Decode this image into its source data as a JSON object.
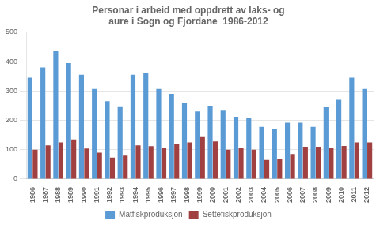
{
  "chart_data": {
    "type": "bar",
    "title": "Personar i arbeid med oppdrett av laks- og\naure i Sogn og Fjordane  1986-2012",
    "categories": [
      "1986",
      "1987",
      "1988",
      "1989",
      "1990",
      "1991",
      "1992",
      "1993",
      "1994",
      "1995",
      "1996",
      "1997",
      "1998",
      "1999",
      "2000",
      "2001",
      "2002",
      "2003",
      "2004",
      "2005",
      "2006",
      "2007",
      "2008",
      "2009",
      "2010",
      "2011",
      "2012"
    ],
    "series": [
      {
        "name": "Matfiskproduksjon",
        "color": "#5B9BD5",
        "values": [
          345,
          380,
          435,
          395,
          355,
          307,
          265,
          248,
          355,
          362,
          307,
          290,
          260,
          230,
          250,
          233,
          212,
          207,
          178,
          170,
          192,
          192,
          178,
          247,
          270,
          345,
          307
        ]
      },
      {
        "name": "Settefiskproduksjon",
        "color": "#A04040",
        "values": [
          100,
          115,
          125,
          135,
          104,
          90,
          73,
          80,
          115,
          112,
          105,
          120,
          125,
          143,
          128,
          100,
          105,
          100,
          65,
          70,
          85,
          110,
          110,
          105,
          113,
          125,
          125
        ]
      }
    ],
    "ylim": [
      0,
      500
    ],
    "yticks": [
      0,
      100,
      200,
      300,
      400,
      500
    ],
    "grid": true,
    "legend": "bottom"
  }
}
